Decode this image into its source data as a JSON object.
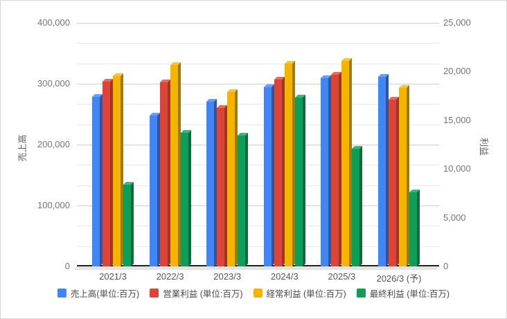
{
  "chart_data": {
    "type": "bar",
    "style": "grouped-3d-dual-axis",
    "categories": [
      "2021/3",
      "2022/3",
      "2023/3",
      "2024/3",
      "2025/3",
      "2026/3 (予)"
    ],
    "series": [
      {
        "key": "sales",
        "name": "売上高(単位:百万)",
        "axis": "left",
        "color": "#4285F4",
        "color_top": "#6D9EF7",
        "color_side": "#2A56A8",
        "values": [
          278000,
          248000,
          271000,
          294000,
          309000,
          311000
        ]
      },
      {
        "key": "operating-profit",
        "name": "営業利益 (単位:百万)",
        "axis": "right",
        "color": "#DB4437",
        "color_top": "#E36C62",
        "color_side": "#A23327",
        "values": [
          19000,
          18900,
          16300,
          19200,
          19700,
          17100
        ]
      },
      {
        "key": "ordinary-profit",
        "name": "経常利益 (単位:百万)",
        "axis": "right",
        "color": "#F4B400",
        "color_top": "#F6C344",
        "color_side": "#A17A00",
        "values": [
          19500,
          20700,
          17900,
          20800,
          21100,
          18300
        ]
      },
      {
        "key": "net-profit",
        "name": "最終利益 (単位:百万)",
        "axis": "right",
        "color": "#0F9D58",
        "color_top": "#3FB27E",
        "color_side": "#0A6B3C",
        "values": [
          8400,
          13700,
          13400,
          17300,
          12100,
          7600
        ]
      }
    ],
    "axes": {
      "left": {
        "title": "売上高",
        "min": 0,
        "max": 400000,
        "tick_step": 100000
      },
      "right": {
        "title": "利益",
        "min": 0,
        "max": 25000,
        "tick_step": 5000
      }
    },
    "grid": {
      "intervals": 12,
      "major_every": 3
    },
    "legend_position": "bottom",
    "title": ""
  }
}
